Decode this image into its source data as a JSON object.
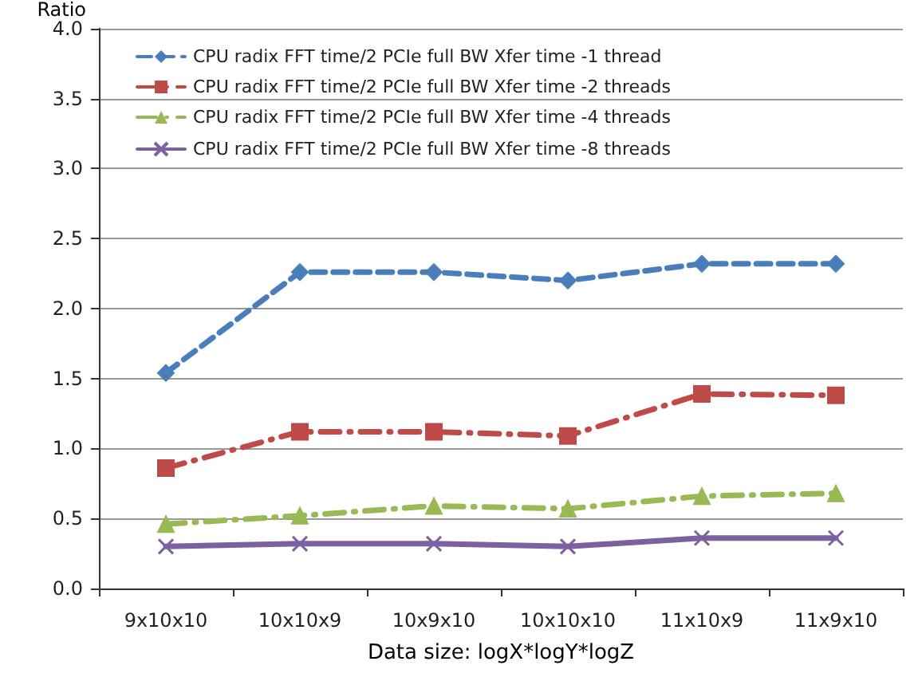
{
  "chart_data": {
    "type": "line",
    "ylabel": "Ratio",
    "xlabel": "Data size: logX*logY*logZ",
    "categories": [
      "9x10x10",
      "10x10x9",
      "10x9x10",
      "10x10x10",
      "11x10x9",
      "11x9x10"
    ],
    "series": [
      {
        "name": "CPU radix FFT time/2 PCIe full BW Xfer time -1 thread",
        "color": "#4a7ebb",
        "marker": "diamond",
        "line_style": "dashed",
        "values": [
          1.54,
          2.26,
          2.26,
          2.2,
          2.32,
          2.32
        ]
      },
      {
        "name": "CPU radix FFT time/2 PCIe full BW Xfer time -2 threads",
        "color": "#be4b48",
        "marker": "square",
        "line_style": "dashdot",
        "values": [
          0.86,
          1.12,
          1.12,
          1.09,
          1.39,
          1.38
        ]
      },
      {
        "name": "CPU radix FFT time/2 PCIe full BW Xfer time -4 threads",
        "color": "#98b954",
        "marker": "triangle",
        "line_style": "dashdot",
        "values": [
          0.46,
          0.52,
          0.59,
          0.57,
          0.66,
          0.68
        ]
      },
      {
        "name": "CPU radix FFT time/2 PCIe full BW Xfer time -8 threads",
        "color": "#7d60a0",
        "marker": "cross",
        "line_style": "solid",
        "values": [
          0.3,
          0.32,
          0.32,
          0.3,
          0.36,
          0.36
        ]
      }
    ],
    "ylim": [
      0,
      4
    ],
    "yticks": [
      {
        "value": 0,
        "label": "0.0"
      },
      0.5,
      {
        "value": 1,
        "label": "1.0"
      },
      1.5,
      {
        "value": 2,
        "label": "2.0"
      },
      2.5,
      {
        "value": 3,
        "label": "3.0"
      },
      3.5,
      {
        "value": 4,
        "label": "4.0"
      }
    ],
    "grid": "y",
    "legend": "top left"
  }
}
